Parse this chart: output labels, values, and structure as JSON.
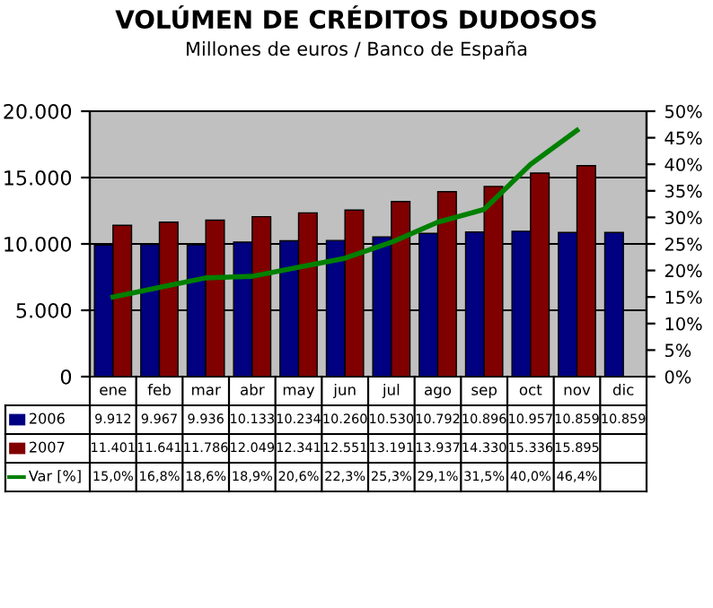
{
  "chart_data": {
    "type": "bar",
    "title": "VOLÚMEN DE CRÉDITOS DUDOSOS",
    "subtitle": "Millones de euros / Banco de España",
    "categories": [
      "ene",
      "feb",
      "mar",
      "abr",
      "may",
      "jun",
      "jul",
      "ago",
      "sep",
      "oct",
      "nov",
      "dic"
    ],
    "series": [
      {
        "name": "2006",
        "color": "#000080",
        "values": [
          9912,
          9967,
          9936,
          10133,
          10234,
          10260,
          10530,
          10792,
          10896,
          10957,
          10859,
          10859
        ],
        "value_labels": [
          "9.912",
          "9.967",
          "9.936",
          "10.133",
          "10.234",
          "10.260",
          "10.530",
          "10.792",
          "10.896",
          "10.957",
          "10.859",
          "10.859"
        ]
      },
      {
        "name": "2007",
        "color": "#800000",
        "values": [
          11401,
          11641,
          11786,
          12049,
          12341,
          12551,
          13191,
          13937,
          14330,
          15336,
          15895,
          null
        ],
        "value_labels": [
          "11.401",
          "11.641",
          "11.786",
          "12.049",
          "12.341",
          "12.551",
          "13.191",
          "13.937",
          "14.330",
          "15.336",
          "15.895",
          null
        ]
      },
      {
        "name": "Var [%]",
        "type": "line",
        "axis": "y2",
        "color": "#008000",
        "values": [
          15.0,
          16.8,
          18.6,
          18.9,
          20.6,
          22.3,
          25.3,
          29.1,
          31.5,
          40.0,
          46.4,
          null
        ],
        "value_labels": [
          "15,0%",
          "16,8%",
          "18,6%",
          "18,9%",
          "20,6%",
          "22,3%",
          "25,3%",
          "29,1%",
          "31,5%",
          "40,0%",
          "46,4%",
          null
        ]
      }
    ],
    "ylim": [
      0,
      20000
    ],
    "yticks": [
      {
        "value": 0,
        "label": "0"
      },
      {
        "value": 5000,
        "label": "5.000"
      },
      {
        "value": 10000,
        "label": "10.000"
      },
      {
        "value": 15000,
        "label": "15.000"
      },
      {
        "value": 20000,
        "label": "20.000"
      }
    ],
    "y2lim": [
      0,
      50
    ],
    "y2ticks": [
      {
        "value": 0,
        "label": "0%"
      },
      {
        "value": 5,
        "label": "5%"
      },
      {
        "value": 10,
        "label": "10%"
      },
      {
        "value": 15,
        "label": "15%"
      },
      {
        "value": 20,
        "label": "20%"
      },
      {
        "value": 25,
        "label": "25%"
      },
      {
        "value": 30,
        "label": "30%"
      },
      {
        "value": 35,
        "label": "35%"
      },
      {
        "value": 40,
        "label": "40%"
      },
      {
        "value": 45,
        "label": "45%"
      },
      {
        "value": 50,
        "label": "50%"
      }
    ],
    "grid": "y",
    "legend": "bottom",
    "marker": "none",
    "line_style": "solid"
  }
}
